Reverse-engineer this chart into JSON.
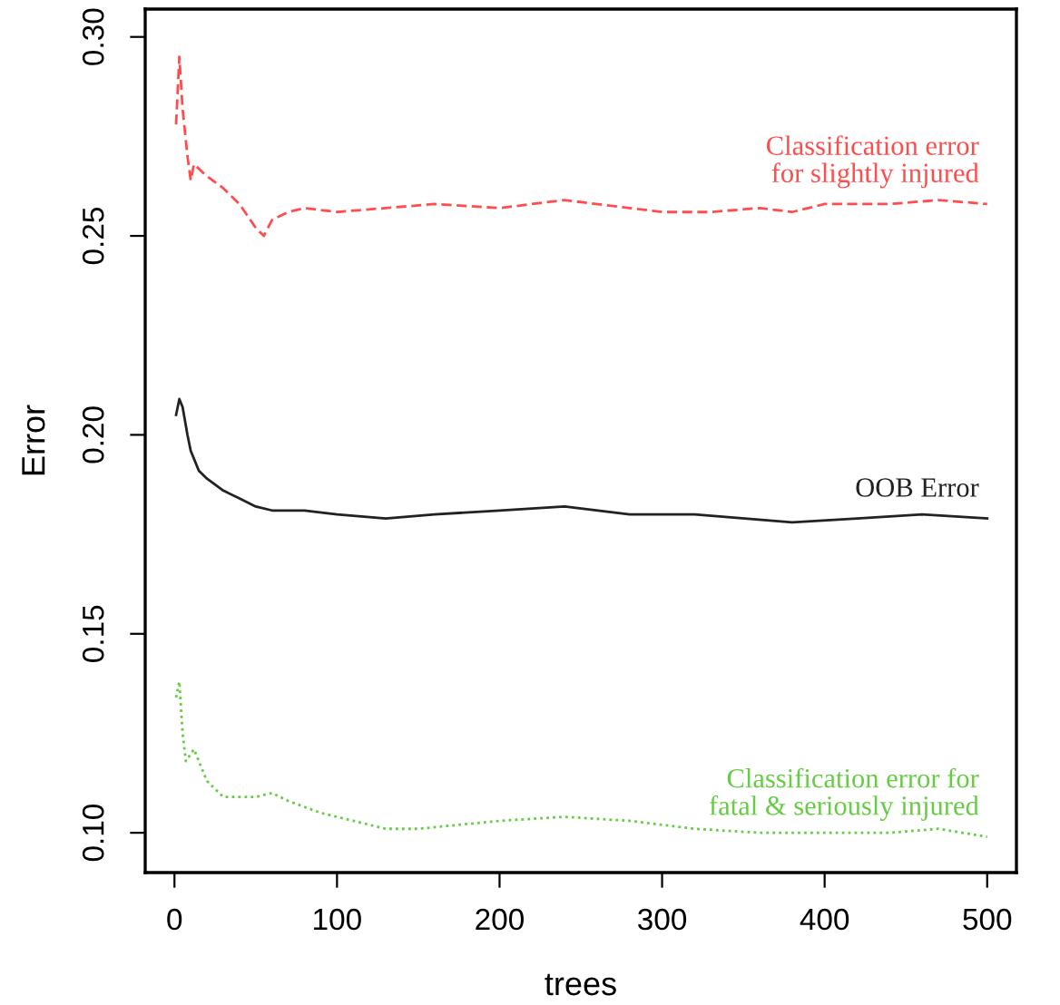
{
  "chart_data": {
    "type": "line",
    "xlabel": "trees",
    "ylabel": "Error",
    "xlim": [
      -18,
      518
    ],
    "ylim": [
      0.09,
      0.307
    ],
    "xticks": [
      0,
      100,
      200,
      300,
      400,
      500
    ],
    "yticks": [
      {
        "value": 0.1,
        "label": "0.10"
      },
      {
        "value": 0.15,
        "label": "0.15"
      },
      {
        "value": 0.2,
        "label": "0.20"
      },
      {
        "value": 0.25,
        "label": "0.25"
      },
      {
        "value": 0.3,
        "label": "0.30"
      }
    ],
    "grid": false,
    "legend": false,
    "marker": "none",
    "series": [
      {
        "name": "Classification error\nfor slightly injured",
        "color": "#ff4d4d",
        "line_style": "dashed",
        "x": [
          1,
          3,
          5,
          8,
          10,
          12,
          20,
          30,
          40,
          50,
          55,
          60,
          70,
          80,
          100,
          130,
          160,
          200,
          240,
          280,
          300,
          330,
          360,
          380,
          400,
          440,
          470,
          500
        ],
        "values": [
          0.278,
          0.295,
          0.282,
          0.27,
          0.264,
          0.268,
          0.265,
          0.262,
          0.258,
          0.252,
          0.25,
          0.254,
          0.256,
          0.257,
          0.256,
          0.257,
          0.258,
          0.257,
          0.259,
          0.257,
          0.256,
          0.256,
          0.257,
          0.256,
          0.258,
          0.258,
          0.259,
          0.258
        ]
      },
      {
        "name": "OOB Error",
        "color": "#222222",
        "line_style": "solid",
        "x": [
          1,
          3,
          5,
          8,
          10,
          15,
          20,
          30,
          40,
          50,
          60,
          80,
          100,
          130,
          160,
          200,
          240,
          280,
          320,
          380,
          420,
          460,
          500
        ],
        "values": [
          0.205,
          0.209,
          0.207,
          0.2,
          0.196,
          0.191,
          0.189,
          0.186,
          0.184,
          0.182,
          0.181,
          0.181,
          0.18,
          0.179,
          0.18,
          0.181,
          0.182,
          0.18,
          0.18,
          0.178,
          0.179,
          0.18,
          0.179
        ]
      },
      {
        "name": "Classification error for\nfatal & seriously injured",
        "color": "#66cc44",
        "line_style": "dotted",
        "x": [
          1,
          3,
          5,
          7,
          12,
          15,
          20,
          30,
          40,
          50,
          60,
          70,
          90,
          110,
          130,
          150,
          200,
          240,
          280,
          320,
          360,
          400,
          440,
          470,
          500
        ],
        "values": [
          0.134,
          0.138,
          0.125,
          0.118,
          0.121,
          0.118,
          0.113,
          0.109,
          0.109,
          0.109,
          0.11,
          0.108,
          0.105,
          0.103,
          0.101,
          0.101,
          0.103,
          0.104,
          0.103,
          0.101,
          0.1,
          0.1,
          0.1,
          0.101,
          0.099
        ]
      }
    ]
  }
}
